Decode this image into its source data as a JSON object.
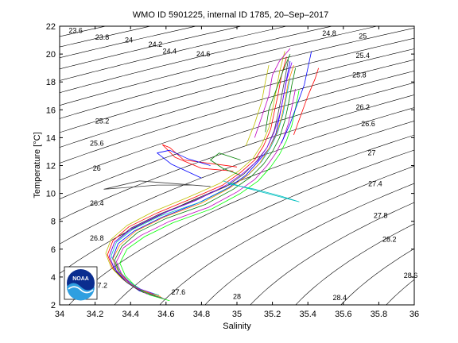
{
  "chart_data": {
    "type": "scatter",
    "title": "WMO ID 5901225, internal ID 1785, 20–Sep–2017",
    "xlabel": "Salinity",
    "ylabel": "Temperature [°C]",
    "xlim": [
      34,
      36
    ],
    "ylim": [
      2,
      22
    ],
    "xticks": [
      "34",
      "34.2",
      "34.4",
      "34.6",
      "34.8",
      "35",
      "35.2",
      "35.4",
      "35.6",
      "35.8",
      "36"
    ],
    "yticks": [
      "2",
      "4",
      "6",
      "8",
      "10",
      "12",
      "14",
      "16",
      "18",
      "20",
      "22"
    ],
    "grid": false,
    "density_contours": [
      {
        "label": "23.6",
        "x": 34.09,
        "y": 21.7
      },
      {
        "label": "23.8",
        "x": 34.24,
        "y": 21.2
      },
      {
        "label": "24",
        "x": 34.39,
        "y": 21.0
      },
      {
        "label": "24.2",
        "x": 34.54,
        "y": 20.7
      },
      {
        "label": "24.4",
        "x": 34.62,
        "y": 20.2
      },
      {
        "label": "24.6",
        "x": 34.81,
        "y": 20.0
      },
      {
        "label": "24.8",
        "x": 35.52,
        "y": 21.5
      },
      {
        "label": "25",
        "x": 35.71,
        "y": 21.3
      },
      {
        "label": "25.2",
        "x": 34.24,
        "y": 15.2
      },
      {
        "label": "25.4",
        "x": 35.71,
        "y": 19.9
      },
      {
        "label": "25.6",
        "x": 34.21,
        "y": 13.6
      },
      {
        "label": "25.8",
        "x": 35.69,
        "y": 18.5
      },
      {
        "label": "26",
        "x": 34.21,
        "y": 11.8
      },
      {
        "label": "26.2",
        "x": 35.71,
        "y": 16.2
      },
      {
        "label": "26.4",
        "x": 34.21,
        "y": 9.3
      },
      {
        "label": "26.6",
        "x": 35.74,
        "y": 15.0
      },
      {
        "label": "26.8",
        "x": 34.21,
        "y": 6.8
      },
      {
        "label": "27",
        "x": 35.76,
        "y": 12.9
      },
      {
        "label": "27.2",
        "x": 34.23,
        "y": 3.4
      },
      {
        "label": "27.4",
        "x": 35.78,
        "y": 10.7
      },
      {
        "label": "27.6",
        "x": 34.67,
        "y": 2.9
      },
      {
        "label": "27.8",
        "x": 35.81,
        "y": 8.4
      },
      {
        "label": "28",
        "x": 35.0,
        "y": 2.6
      },
      {
        "label": "28.2",
        "x": 35.86,
        "y": 6.7
      },
      {
        "label": "28.4",
        "x": 35.58,
        "y": 2.5
      },
      {
        "label": "28.6",
        "x": 35.98,
        "y": 4.1
      }
    ],
    "series": [
      {
        "color": "#0000ff",
        "s": [
          34.55,
          34.45,
          34.38,
          34.32,
          34.3,
          34.33,
          34.42,
          34.58,
          34.78,
          34.95,
          35.05,
          35.12,
          35.18,
          35.22,
          35.24,
          35.26,
          35.28,
          35.3
        ],
        "t": [
          2.6,
          3.0,
          3.6,
          4.4,
          5.4,
          6.4,
          7.3,
          8.3,
          9.3,
          10.4,
          11.3,
          12.3,
          13.2,
          14.3,
          15.5,
          16.8,
          18.2,
          19.5
        ]
      },
      {
        "color": "#008000",
        "s": [
          34.58,
          34.47,
          34.4,
          34.34,
          34.31,
          34.35,
          34.44,
          34.6,
          34.82,
          34.98,
          35.08,
          35.15,
          35.2,
          35.24,
          35.27,
          35.29,
          35.31,
          35.33
        ],
        "t": [
          2.5,
          2.9,
          3.5,
          4.3,
          5.2,
          6.2,
          7.2,
          8.2,
          9.2,
          10.3,
          11.2,
          12.1,
          13.0,
          14.0,
          15.2,
          16.4,
          17.8,
          19.0
        ]
      },
      {
        "color": "#ff0000",
        "s": [
          34.52,
          34.43,
          34.36,
          34.3,
          34.27,
          34.3,
          34.39,
          34.55,
          34.74,
          34.92,
          35.02,
          35.1,
          35.15,
          35.19,
          35.21,
          35.23,
          35.25,
          35.28
        ],
        "t": [
          2.8,
          3.2,
          3.8,
          4.6,
          5.6,
          6.6,
          7.6,
          8.6,
          9.6,
          10.6,
          11.5,
          12.4,
          13.4,
          14.6,
          15.8,
          17.0,
          18.4,
          19.8
        ]
      },
      {
        "color": "#00bfbf",
        "s": [
          34.56,
          34.46,
          34.39,
          34.33,
          34.29,
          34.32,
          34.41,
          34.57,
          34.8,
          34.97,
          35.07,
          35.14,
          35.19,
          35.23,
          35.26,
          35.28,
          35.3
        ],
        "t": [
          2.7,
          3.1,
          3.7,
          4.5,
          5.5,
          6.5,
          7.4,
          8.4,
          9.4,
          10.5,
          11.4,
          12.3,
          13.3,
          14.4,
          15.7,
          17.0,
          18.3
        ]
      },
      {
        "color": "#bf00bf",
        "s": [
          34.6,
          34.49,
          34.41,
          34.35,
          34.32,
          34.36,
          34.46,
          34.62,
          34.84,
          35.0,
          35.1,
          35.17,
          35.22,
          35.26,
          35.29,
          35.31,
          35.33
        ],
        "t": [
          2.4,
          2.8,
          3.4,
          4.2,
          5.1,
          6.1,
          7.0,
          8.0,
          9.0,
          10.1,
          11.0,
          12.0,
          12.9,
          13.9,
          15.0,
          16.2,
          17.5
        ]
      },
      {
        "color": "#bfbf00",
        "s": [
          34.5,
          34.42,
          34.35,
          34.29,
          34.26,
          34.29,
          34.38,
          34.53,
          34.72,
          34.9,
          35.01,
          35.09,
          35.14,
          35.18,
          35.2,
          35.22,
          35.24,
          35.27
        ],
        "t": [
          2.9,
          3.3,
          3.9,
          4.7,
          5.7,
          6.7,
          7.7,
          8.7,
          9.7,
          10.7,
          11.6,
          12.5,
          13.5,
          14.7,
          16.0,
          17.3,
          18.7,
          20.2
        ]
      },
      {
        "color": "#404040",
        "s": [
          34.54,
          34.44,
          34.37,
          34.31,
          34.28,
          34.31,
          34.4,
          34.56,
          34.76,
          34.94,
          35.04,
          35.11,
          35.17,
          35.21,
          35.23,
          35.25,
          35.27,
          35.29
        ],
        "t": [
          2.7,
          3.1,
          3.7,
          4.5,
          5.5,
          6.5,
          7.5,
          8.5,
          9.5,
          10.5,
          11.4,
          12.3,
          13.3,
          14.5,
          15.6,
          16.9,
          18.2,
          19.6
        ]
      },
      {
        "color": "#ff8000",
        "s": [
          34.57,
          34.47,
          34.39,
          34.33,
          34.3,
          34.34,
          34.43,
          34.59,
          34.8,
          34.96,
          35.06,
          35.13,
          35.18,
          35.22,
          35.25,
          35.27,
          35.29,
          35.32
        ],
        "t": [
          2.6,
          3.0,
          3.6,
          4.4,
          5.3,
          6.3,
          7.3,
          8.3,
          9.3,
          10.4,
          11.3,
          12.2,
          13.2,
          14.2,
          15.4,
          16.6,
          18.0,
          19.2
        ]
      },
      {
        "color": "#00ff00",
        "s": [
          34.62,
          34.51,
          34.43,
          34.37,
          34.34,
          34.38,
          34.48,
          34.64,
          34.86,
          35.02,
          35.12,
          35.19,
          35.24,
          35.28,
          35.31,
          35.33,
          35.35
        ],
        "t": [
          2.3,
          2.7,
          3.3,
          4.1,
          5.0,
          6.0,
          6.9,
          7.9,
          8.9,
          10.0,
          10.9,
          11.9,
          12.8,
          13.8,
          14.9,
          16.1,
          17.4
        ]
      },
      {
        "color": "#8000ff",
        "s": [
          34.53,
          34.44,
          34.37,
          34.31,
          34.28,
          34.31,
          34.41,
          34.57,
          34.77,
          34.94,
          35.04,
          35.12,
          35.17,
          35.21,
          35.24,
          35.26,
          35.28,
          35.31
        ],
        "t": [
          2.8,
          3.2,
          3.8,
          4.6,
          5.5,
          6.5,
          7.5,
          8.5,
          9.5,
          10.6,
          11.5,
          12.4,
          13.3,
          14.4,
          15.6,
          16.8,
          18.1,
          19.4
        ]
      },
      {
        "color": "#ff0000",
        "s": [
          34.98,
          34.8,
          34.65,
          34.58,
          34.62,
          34.7,
          34.88,
          35.0
        ],
        "t": [
          11.6,
          11.8,
          12.6,
          13.5,
          13.3,
          12.4,
          12.1,
          11.9
        ]
      },
      {
        "color": "#0000ff",
        "s": [
          34.8,
          34.63,
          34.55,
          34.62,
          34.72,
          34.85
        ],
        "t": [
          11.1,
          12.1,
          12.9,
          13.1,
          12.5,
          12.0
        ]
      },
      {
        "color": "#008000",
        "s": [
          35.02,
          34.92,
          34.85,
          34.9,
          35.02
        ],
        "t": [
          11.3,
          11.8,
          12.4,
          12.9,
          12.4
        ]
      },
      {
        "color": "#00bfbf",
        "s": [
          34.92,
          35.05,
          35.2,
          35.35,
          35.25,
          35.1,
          34.95
        ],
        "t": [
          10.9,
          10.4,
          9.9,
          9.4,
          9.8,
          10.3,
          10.7
        ]
      },
      {
        "color": "#404040",
        "s": [
          34.85,
          34.65,
          34.45,
          34.25,
          34.35,
          34.55,
          34.75
        ],
        "t": [
          10.5,
          10.7,
          10.9,
          10.3,
          10.4,
          10.6,
          10.6
        ]
      },
      {
        "color": "#bf00bf",
        "s": [
          35.1,
          35.14,
          35.18,
          35.2,
          35.24,
          35.3
        ],
        "t": [
          14.0,
          15.5,
          17.0,
          18.5,
          19.5,
          20.4
        ]
      },
      {
        "color": "#0000ff",
        "s": [
          35.25,
          35.3,
          35.34,
          35.38,
          35.4,
          35.42
        ],
        "t": [
          13.6,
          15.0,
          16.4,
          17.8,
          19.0,
          20.2
        ]
      },
      {
        "color": "#ff0000",
        "s": [
          35.32,
          35.36,
          35.4,
          35.44,
          35.46
        ],
        "t": [
          14.2,
          15.6,
          17.0,
          18.2,
          19.0
        ]
      },
      {
        "color": "#008000",
        "s": [
          35.16,
          35.18,
          35.22,
          35.26,
          35.3
        ],
        "t": [
          14.4,
          16.0,
          17.4,
          18.8,
          20.0
        ]
      },
      {
        "color": "#bfbf00",
        "s": [
          35.05,
          35.1,
          35.14,
          35.16,
          35.18
        ],
        "t": [
          13.4,
          15.0,
          16.6,
          18.0,
          19.2
        ]
      }
    ]
  },
  "logo": {
    "text": "NOAA"
  }
}
